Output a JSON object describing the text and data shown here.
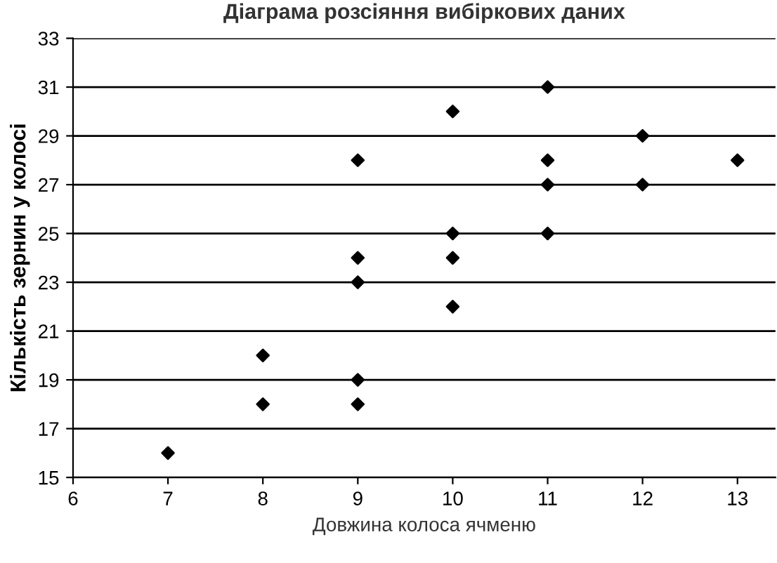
{
  "chart_data": {
    "type": "scatter",
    "title": "Діаграма розсіяння вибіркових даних",
    "xlabel": "Довжина колоса ячменю",
    "ylabel": "Кількість зернин у колосі",
    "x": [
      7,
      8,
      8,
      9,
      9,
      9,
      9,
      9,
      10,
      10,
      10,
      10,
      11,
      11,
      11,
      11,
      12,
      12,
      13
    ],
    "values": [
      16,
      18,
      20,
      18,
      19,
      23,
      24,
      28,
      22,
      24,
      25,
      30,
      25,
      27,
      28,
      31,
      27,
      29,
      28
    ],
    "color": "#000000",
    "marker": "diamond",
    "xlim": [
      6,
      13.4
    ],
    "xticks": [
      6,
      7,
      8,
      9,
      10,
      11,
      12,
      13
    ],
    "ylim": [
      15,
      33
    ],
    "yticks": [
      15,
      17,
      19,
      21,
      23,
      25,
      27,
      29,
      31,
      33
    ],
    "grid": "y",
    "legend": false
  }
}
